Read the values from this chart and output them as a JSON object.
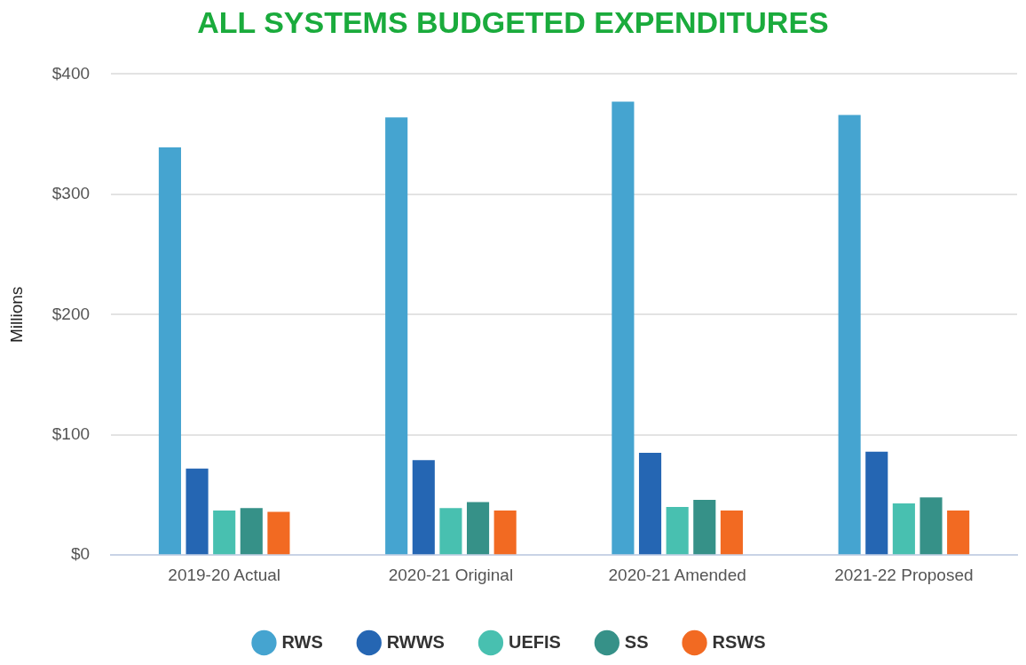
{
  "chart_data": {
    "type": "bar",
    "title": "ALL SYSTEMS BUDGETED EXPENDITURES",
    "ylabel": "Millions",
    "categories": [
      "2019-20 Actual",
      "2020-21 Original",
      "2020-21 Amended",
      "2021-22 Proposed"
    ],
    "series": [
      {
        "name": "RWS",
        "color": "#45a4d0",
        "values": [
          339,
          364,
          377,
          366
        ]
      },
      {
        "name": "RWWS",
        "color": "#2566b3",
        "values": [
          72,
          79,
          85,
          86
        ]
      },
      {
        "name": "UEFIS",
        "color": "#48c0b0",
        "values": [
          37,
          39,
          40,
          43
        ]
      },
      {
        "name": "SS",
        "color": "#369188",
        "values": [
          39,
          44,
          46,
          48
        ]
      },
      {
        "name": "RSWS",
        "color": "#f26a22",
        "values": [
          36,
          37,
          37,
          37
        ]
      }
    ],
    "ylim": [
      0,
      400
    ],
    "yticks": [
      {
        "value": 0,
        "label": "$0"
      },
      {
        "value": 100,
        "label": "$100"
      },
      {
        "value": 200,
        "label": "$200"
      },
      {
        "value": 300,
        "label": "$300"
      },
      {
        "value": 400,
        "label": "$400"
      }
    ],
    "grid": "y",
    "legend": "bottom"
  }
}
